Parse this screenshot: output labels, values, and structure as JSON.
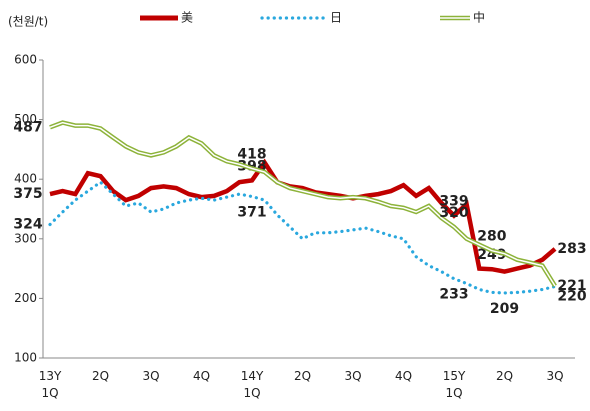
{
  "chart_data": {
    "type": "line",
    "y_label": "(천원/t)",
    "categories": [
      "13Y\n1Q",
      null,
      null,
      null,
      "2Q",
      null,
      null,
      null,
      "3Q",
      null,
      null,
      null,
      "4Q",
      null,
      null,
      null,
      "14Y\n1Q",
      null,
      null,
      null,
      "2Q",
      null,
      null,
      null,
      "3Q",
      null,
      null,
      null,
      "4Q",
      null,
      null,
      null,
      "15Y\n1Q",
      null,
      null,
      null,
      "2Q",
      null,
      null,
      null,
      "3Q"
    ],
    "series": [
      {
        "name": "美",
        "color": "#c00000",
        "style": "solid",
        "values": [
          375,
          380,
          375,
          410,
          405,
          380,
          365,
          372,
          385,
          388,
          385,
          375,
          370,
          372,
          380,
          395,
          398,
          428,
          395,
          388,
          385,
          378,
          375,
          372,
          368,
          372,
          375,
          380,
          390,
          372,
          385,
          360,
          339,
          358,
          250,
          249,
          245,
          250,
          255,
          265,
          283
        ],
        "value_labels": [
          "375",
          null,
          null,
          null,
          null,
          null,
          null,
          null,
          null,
          null,
          null,
          null,
          null,
          null,
          null,
          null,
          "398",
          null,
          null,
          null,
          null,
          null,
          null,
          null,
          null,
          null,
          null,
          null,
          null,
          null,
          null,
          null,
          "339",
          null,
          null,
          "249",
          null,
          null,
          null,
          null,
          "283"
        ]
      },
      {
        "name": "日",
        "color": "#2aa8de",
        "style": "dotted",
        "values": [
          324,
          345,
          365,
          380,
          395,
          375,
          355,
          360,
          345,
          350,
          360,
          365,
          368,
          365,
          370,
          375,
          371,
          365,
          340,
          320,
          300,
          310,
          310,
          312,
          315,
          318,
          312,
          305,
          300,
          270,
          255,
          245,
          233,
          225,
          215,
          210,
          209,
          210,
          212,
          215,
          220
        ],
        "value_labels": [
          "324",
          null,
          null,
          null,
          null,
          null,
          null,
          null,
          null,
          null,
          null,
          null,
          null,
          null,
          null,
          null,
          "371",
          null,
          null,
          null,
          null,
          null,
          null,
          null,
          null,
          null,
          null,
          null,
          null,
          null,
          null,
          null,
          "233",
          null,
          null,
          null,
          "209",
          null,
          null,
          null,
          "220"
        ]
      },
      {
        "name": "中",
        "color": "#8db33a",
        "style": "double",
        "values": [
          487,
          495,
          490,
          490,
          485,
          470,
          455,
          445,
          440,
          445,
          455,
          470,
          460,
          440,
          430,
          425,
          418,
          412,
          395,
          385,
          380,
          375,
          370,
          368,
          370,
          368,
          362,
          355,
          352,
          345,
          355,
          335,
          320,
          300,
          290,
          280,
          275,
          265,
          260,
          255,
          221
        ],
        "value_labels": [
          "487",
          null,
          null,
          null,
          null,
          null,
          null,
          null,
          null,
          null,
          null,
          null,
          null,
          null,
          null,
          null,
          "418",
          null,
          null,
          null,
          null,
          null,
          null,
          null,
          null,
          null,
          null,
          null,
          null,
          null,
          null,
          null,
          "320",
          null,
          null,
          "280",
          null,
          null,
          null,
          null,
          "221"
        ]
      }
    ],
    "ylim": [
      100,
      600
    ],
    "yticks": [
      100,
      200,
      300,
      400,
      500,
      600
    ],
    "grid": false
  }
}
